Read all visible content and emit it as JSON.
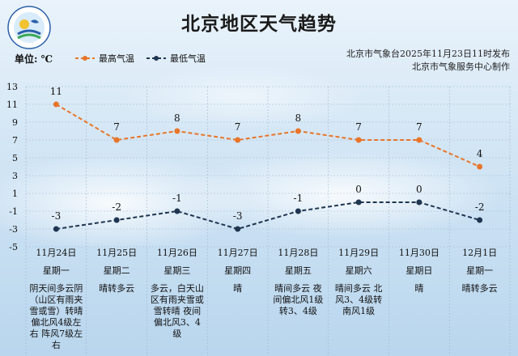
{
  "title": "北京地区天气趋势",
  "unit_label": "单位: ℃",
  "legend": {
    "high_label": "最高气温",
    "low_label": "最低气温"
  },
  "publish": {
    "line1": "北京市气象台2025年11月23日11时发布",
    "line2": "北京市气象服务中心制作"
  },
  "colors": {
    "high": "#e8752a",
    "low": "#1f3550",
    "grid": "#9fb8cf"
  },
  "days": [
    {
      "date": "11月24日",
      "week": "星期一",
      "desc": "阴天间多云阴（山区有雨夹雪或雪）转晴偏北风4级左右 阵风7级左右"
    },
    {
      "date": "11月25日",
      "week": "星期二",
      "desc": "晴转多云"
    },
    {
      "date": "11月26日",
      "week": "星期三",
      "desc": "多云，白天山区有雨夹雪或雪转晴 夜间偏北风3、4级"
    },
    {
      "date": "11月27日",
      "week": "星期四",
      "desc": "晴"
    },
    {
      "date": "11月28日",
      "week": "星期五",
      "desc": "晴间多云 夜间偏北风1级转3、4级"
    },
    {
      "date": "11月29日",
      "week": "星期六",
      "desc": "晴间多云 北风3、4级转南风1级"
    },
    {
      "date": "11月30日",
      "week": "星期日",
      "desc": "晴"
    },
    {
      "date": "12月1日",
      "week": "星期一",
      "desc": "晴转多云"
    }
  ],
  "chart_data": {
    "type": "line",
    "categories": [
      "11月24日",
      "11月25日",
      "11月26日",
      "11月27日",
      "11月28日",
      "11月29日",
      "11月30日",
      "12月1日"
    ],
    "series": [
      {
        "name": "最高气温",
        "values": [
          11,
          7,
          8,
          7,
          8,
          7,
          7,
          4
        ]
      },
      {
        "name": "最低气温",
        "values": [
          -3,
          -2,
          -1,
          -3,
          -1,
          0,
          0,
          -2
        ]
      }
    ],
    "ylim": [
      -5,
      13
    ],
    "yticks": [
      13,
      11,
      9,
      7,
      5,
      3,
      1,
      -1,
      -3,
      -5
    ],
    "ylabel": "单位: ℃",
    "grid": true,
    "legend": "top"
  }
}
